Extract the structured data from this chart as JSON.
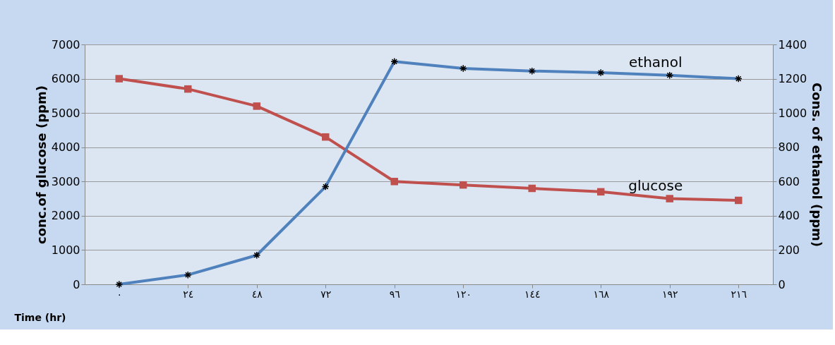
{
  "chart_data": {
    "type": "line",
    "xlabel": "Time (hr)",
    "ylabel": "conc.of glucose (ppm)",
    "y2label": "Cons. of ethanol (ppm)",
    "categories": [
      "٠",
      "٢٤",
      "٤٨",
      "٧٢",
      "٩٦",
      "١٢٠",
      "١٤٤",
      "١٦٨",
      "١٩٢",
      "٢١٦"
    ],
    "series": [
      {
        "name": "glucose",
        "color": "#c0504d",
        "marker": "square",
        "values": [
          6000,
          5700,
          5200,
          4300,
          3000,
          2900,
          2800,
          2700,
          2500,
          2450
        ]
      },
      {
        "name": "ethanol",
        "color": "#4f81bd",
        "marker": "cross",
        "axis": "y2",
        "values": [
          0,
          55,
          170,
          570,
          1300,
          1260,
          1245,
          1235,
          1220,
          1200
        ]
      }
    ],
    "ylim": [
      0,
      7000
    ],
    "yticks": [
      0,
      1000,
      2000,
      3000,
      4000,
      5000,
      6000,
      7000
    ],
    "y2lim": [
      0,
      1400
    ],
    "y2ticks": [
      0,
      200,
      400,
      600,
      800,
      1000,
      1200,
      1400
    ],
    "grid": "y",
    "line_style": "solid"
  }
}
